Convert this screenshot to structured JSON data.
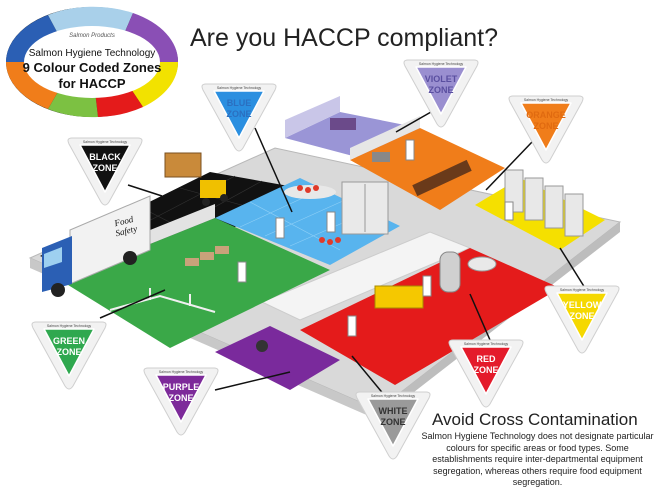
{
  "title": "Are you HACCP compliant?",
  "logo": {
    "brand": "Salmon Hygiene Technology",
    "line1": "9 Colour Coded Zones",
    "line2": "for HACCP",
    "mark": "Salmon Products",
    "ring_colors": [
      "#2b5fb4",
      "#8a4fb5",
      "#a9d0ea",
      "#f2e200",
      "#e41b1b",
      "#7cc142",
      "#f07d1a",
      "#1a1a1a"
    ]
  },
  "zones": [
    {
      "label": "BLUE ZONE",
      "color": "#2b8fe0",
      "text_color": "#2b6fc0",
      "small": "Salmon Hygiene Technology"
    },
    {
      "label": "VIOLET ZONE",
      "color": "#9a8fd0",
      "text_color": "#5a4fa0",
      "small": "Salmon Hygiene Technology"
    },
    {
      "label": "ORANGE ZONE",
      "color": "#f07d1a",
      "text_color": "#e06a10",
      "small": "Salmon Hygiene Technology"
    },
    {
      "label": "BLACK ZONE",
      "color": "#111111",
      "text_color": "#ffffff",
      "small": "Salmon Hygiene Technology"
    },
    {
      "label": "GREEN ZONE",
      "color": "#2fa84f",
      "text_color": "#ffffff",
      "small": "Salmon Hygiene Technology"
    },
    {
      "label": "YELLOW ZONE",
      "color": "#f5d800",
      "text_color": "#ffffff",
      "small": "Salmon Hygiene Technology"
    },
    {
      "label": "RED ZONE",
      "color": "#e41b2b",
      "text_color": "#ffffff",
      "small": "Salmon Hygiene Technology"
    },
    {
      "label": "PURPLE ZONE",
      "color": "#7d2a9a",
      "text_color": "#ffffff",
      "small": "Salmon Hygiene Technology"
    },
    {
      "label": "WHITE ZONE",
      "color": "#9a9a9a",
      "text_color": "#333333",
      "small": "Salmon Hygiene Technology"
    }
  ],
  "truck": {
    "label": "Food Safety"
  },
  "footer": {
    "heading": "Avoid Cross Contamination",
    "body": "Salmon Hygiene Technology does not designate particular colours for specific areas or food types. Some establishments require inter-departmental equipment segregation, whereas others require food equipment segregation."
  }
}
